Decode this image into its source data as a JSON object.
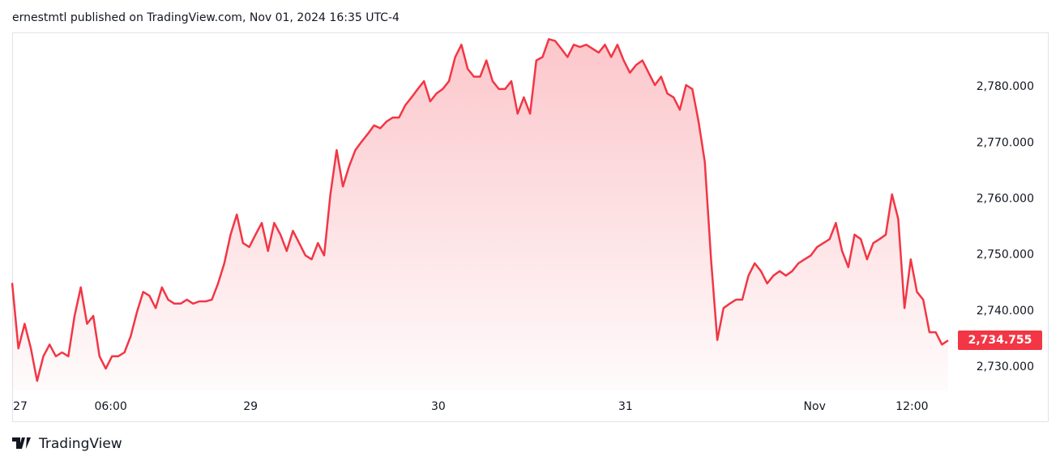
{
  "header": "ernestmtl published on TradingView.com, Nov 01, 2024 16:35 UTC-4",
  "brand": "TradingView",
  "chart_data": {
    "type": "area",
    "color": "#f23645",
    "values": [
      2745,
      2733.3,
      2737.7,
      2733.3,
      2727.5,
      2731.9,
      2734,
      2731.9,
      2732.6,
      2731.9,
      2739.1,
      2744.2,
      2737.7,
      2739.1,
      2731.9,
      2729.7,
      2731.9,
      2731.9,
      2732.6,
      2735.5,
      2739.8,
      2743.4,
      2742.7,
      2740.5,
      2744.2,
      2742,
      2741.3,
      2741.3,
      2742,
      2741.3,
      2741.7,
      2741.7,
      2742,
      2744.9,
      2748.5,
      2753.6,
      2757.2,
      2752.1,
      2751.4,
      2753.6,
      2755.7,
      2750.7,
      2755.7,
      2753.6,
      2750.7,
      2754.3,
      2752.1,
      2749.9,
      2749.2,
      2752.1,
      2749.9,
      2760.8,
      2768.7,
      2762.2,
      2765.8,
      2768.7,
      2770.2,
      2771.6,
      2773.1,
      2772.6,
      2773.8,
      2774.5,
      2774.5,
      2776.7,
      2778.1,
      2779.6,
      2781,
      2777.4,
      2778.8,
      2779.6,
      2781,
      2785.3,
      2787.5,
      2783.2,
      2781.8,
      2781.8,
      2784.7,
      2781,
      2779.6,
      2779.6,
      2781,
      2775.2,
      2778.1,
      2775.2,
      2784.7,
      2785.3,
      2788.5,
      2788.2,
      2786.8,
      2785.3,
      2787.5,
      2787.1,
      2787.5,
      2786.8,
      2786.1,
      2787.5,
      2785.3,
      2787.5,
      2784.7,
      2782.5,
      2783.9,
      2784.7,
      2782.5,
      2780.3,
      2781.8,
      2778.8,
      2778.1,
      2775.9,
      2780.3,
      2779.6,
      2773.8,
      2766.6,
      2749.2,
      2734.8,
      2740.5,
      2741.3,
      2742,
      2742,
      2746.3,
      2748.5,
      2747.1,
      2744.9,
      2746.3,
      2747.1,
      2746.3,
      2747.1,
      2748.5,
      2749.2,
      2749.9,
      2751.4,
      2752.1,
      2752.8,
      2755.7,
      2750.7,
      2747.8,
      2753.6,
      2752.8,
      2749.2,
      2752.1,
      2752.8,
      2753.6,
      2760.8,
      2756.4,
      2740.5,
      2749.2,
      2743.4,
      2742,
      2736.2,
      2736.2,
      2734,
      2734.755
    ],
    "last_value_label": "2,734.755",
    "xlim": [
      0,
      150
    ],
    "xticks": [
      {
        "value": 1.3,
        "label": "27"
      },
      {
        "value": 15.8,
        "label": "06:00"
      },
      {
        "value": 38.2,
        "label": "29"
      },
      {
        "value": 68.3,
        "label": "30"
      },
      {
        "value": 98.3,
        "label": "31"
      },
      {
        "value": 128.6,
        "label": "Nov"
      },
      {
        "value": 144.2,
        "label": "12:00"
      }
    ],
    "ylim": [
      2725.8,
      2789.7
    ],
    "yticks": [
      {
        "value": 2730,
        "label": "2,730.000"
      },
      {
        "value": 2740,
        "label": "2,740.000"
      },
      {
        "value": 2750,
        "label": "2,750.000"
      },
      {
        "value": 2760,
        "label": "2,760.000"
      },
      {
        "value": 2770,
        "label": "2,770.000"
      },
      {
        "value": 2780,
        "label": "2,780.000"
      }
    ]
  }
}
